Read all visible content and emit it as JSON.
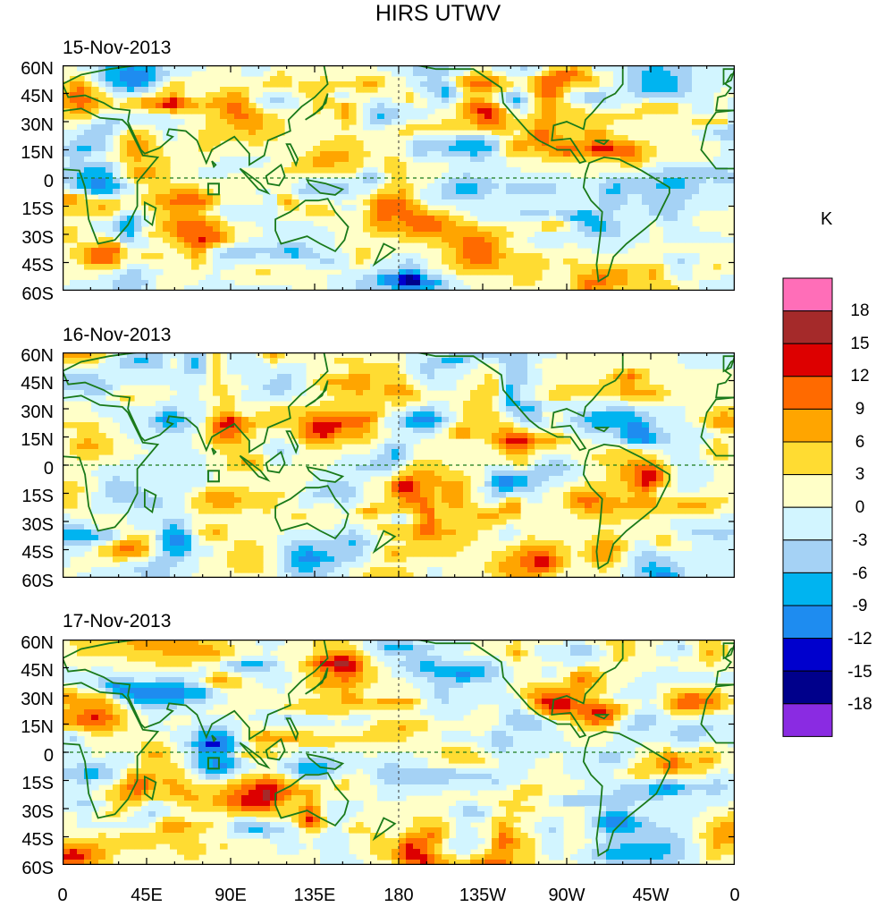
{
  "title": "HIRS UTWV",
  "unit": "K",
  "panels": [
    {
      "date": "15-Nov-2013"
    },
    {
      "date": "16-Nov-2013"
    },
    {
      "date": "17-Nov-2013"
    }
  ],
  "lat_labels": [
    "60N",
    "45N",
    "30N",
    "15N",
    "0",
    "15S",
    "30S",
    "45S",
    "60S"
  ],
  "lon_labels": [
    "0",
    "45E",
    "90E",
    "135E",
    "180",
    "135W",
    "90W",
    "45W",
    "0"
  ],
  "colorbar": {
    "labels": [
      "18",
      "15",
      "12",
      "9",
      "6",
      "3",
      "0",
      "-3",
      "-6",
      "-9",
      "-12",
      "-15",
      "-18"
    ],
    "colors": [
      "#ff6eb8",
      "#a52a2a",
      "#dd0000",
      "#ff6a00",
      "#ffa500",
      "#ffdc32",
      "#ffffc8",
      "#d2f5ff",
      "#a5d2f5",
      "#00b4f0",
      "#1e8cf0",
      "#0000cd",
      "#00008b",
      "#8a2be2"
    ]
  },
  "colors": {
    "coast": "#1a7a1a",
    "background": "#ffffc8"
  }
}
